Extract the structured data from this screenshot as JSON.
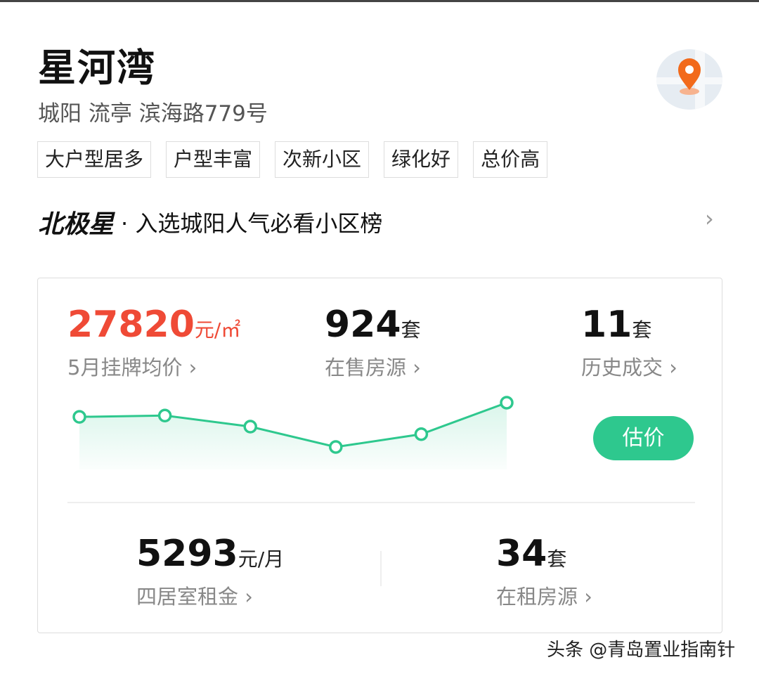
{
  "header": {
    "title": "星河湾",
    "address": "城阳 流亭 滨海路779号",
    "map_icon": "map-pin-icon",
    "tags": [
      "大户型居多",
      "户型丰富",
      "次新小区",
      "绿化好",
      "总价高"
    ]
  },
  "ranking": {
    "brand": "北极星",
    "text": "· 入选城阳人气必看小区榜",
    "chevron": "›"
  },
  "stats": {
    "price": {
      "value": "27820",
      "unit": "元/㎡",
      "label": "5月挂牌均价 ›"
    },
    "on_sale": {
      "value": "924",
      "unit": "套",
      "label": "在售房源 ›"
    },
    "history": {
      "value": "11",
      "unit": "套",
      "label": "历史成交 ›"
    },
    "rent": {
      "value": "5293",
      "unit": "元/月",
      "label": "四居室租金 ›"
    },
    "for_rent": {
      "value": "34",
      "unit": "套",
      "label": "在租房源 ›"
    }
  },
  "estimate_button": "估价",
  "colors": {
    "accent": "#2ec88e",
    "price": "#ef4a36"
  },
  "chart_data": {
    "type": "line",
    "values": [
      0.68,
      0.71,
      0.46,
      0,
      0.29,
      1.0
    ],
    "note_unlabeled": true
  },
  "watermark": "头条 @青岛置业指南针"
}
